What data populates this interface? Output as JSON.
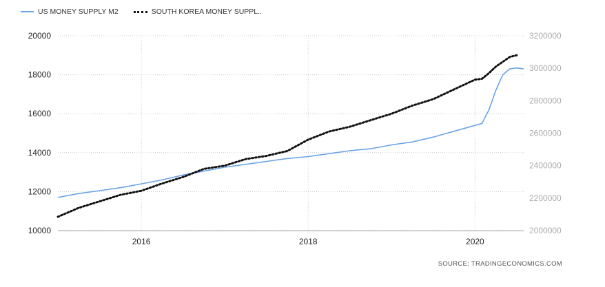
{
  "colors": {
    "us": "#6aa3e6",
    "kr": "#111111",
    "grid": "#cccccc",
    "axis_text": "#222222",
    "right_axis_text": "#aaaaaa"
  },
  "source_text": "SOURCE:  TRADINGECONOMICS.COM",
  "chart_data": {
    "type": "line",
    "grid": true,
    "legend_position": "top-left",
    "x_range": [
      "2015-01",
      "2020-08"
    ],
    "x_ticks": [
      "2016",
      "2018",
      "2020"
    ],
    "y_left": {
      "range": [
        10000,
        20000
      ],
      "ticks": [
        "10000",
        "12000",
        "14000",
        "16000",
        "18000",
        "20000"
      ]
    },
    "y_right": {
      "range": [
        2000000,
        3200000
      ],
      "ticks": [
        "2000000",
        "2200000",
        "2400000",
        "2600000",
        "2800000",
        "3000000",
        "3200000"
      ]
    },
    "series": [
      {
        "name": "US MONEY SUPPLY M2",
        "axis": "left",
        "style": "solid",
        "x": [
          "2015-01",
          "2015-04",
          "2015-07",
          "2015-10",
          "2016-01",
          "2016-04",
          "2016-07",
          "2016-10",
          "2017-01",
          "2017-04",
          "2017-07",
          "2017-10",
          "2018-01",
          "2018-04",
          "2018-07",
          "2018-10",
          "2019-01",
          "2019-04",
          "2019-07",
          "2019-10",
          "2020-01",
          "2020-02",
          "2020-03",
          "2020-04",
          "2020-05",
          "2020-06",
          "2020-07",
          "2020-08"
        ],
        "values": [
          11700,
          11900,
          12050,
          12200,
          12400,
          12600,
          12850,
          13050,
          13250,
          13400,
          13550,
          13700,
          13800,
          13950,
          14100,
          14200,
          14400,
          14550,
          14800,
          15100,
          15400,
          15500,
          16200,
          17200,
          18000,
          18300,
          18350,
          18300
        ]
      },
      {
        "name": "SOUTH KOREA MONEY SUPPL..",
        "axis": "right",
        "style": "dotted",
        "x": [
          "2015-01",
          "2015-04",
          "2015-07",
          "2015-10",
          "2016-01",
          "2016-04",
          "2016-07",
          "2016-10",
          "2017-01",
          "2017-04",
          "2017-07",
          "2017-10",
          "2018-01",
          "2018-04",
          "2018-07",
          "2018-10",
          "2019-01",
          "2019-04",
          "2019-07",
          "2019-10",
          "2020-01",
          "2020-02",
          "2020-03",
          "2020-04",
          "2020-05",
          "2020-06",
          "2020-07"
        ],
        "values": [
          2085000,
          2140000,
          2180000,
          2220000,
          2245000,
          2290000,
          2330000,
          2380000,
          2400000,
          2440000,
          2460000,
          2490000,
          2560000,
          2610000,
          2640000,
          2680000,
          2720000,
          2770000,
          2810000,
          2870000,
          2930000,
          2935000,
          2970000,
          3010000,
          3040000,
          3070000,
          3080000
        ]
      }
    ]
  }
}
